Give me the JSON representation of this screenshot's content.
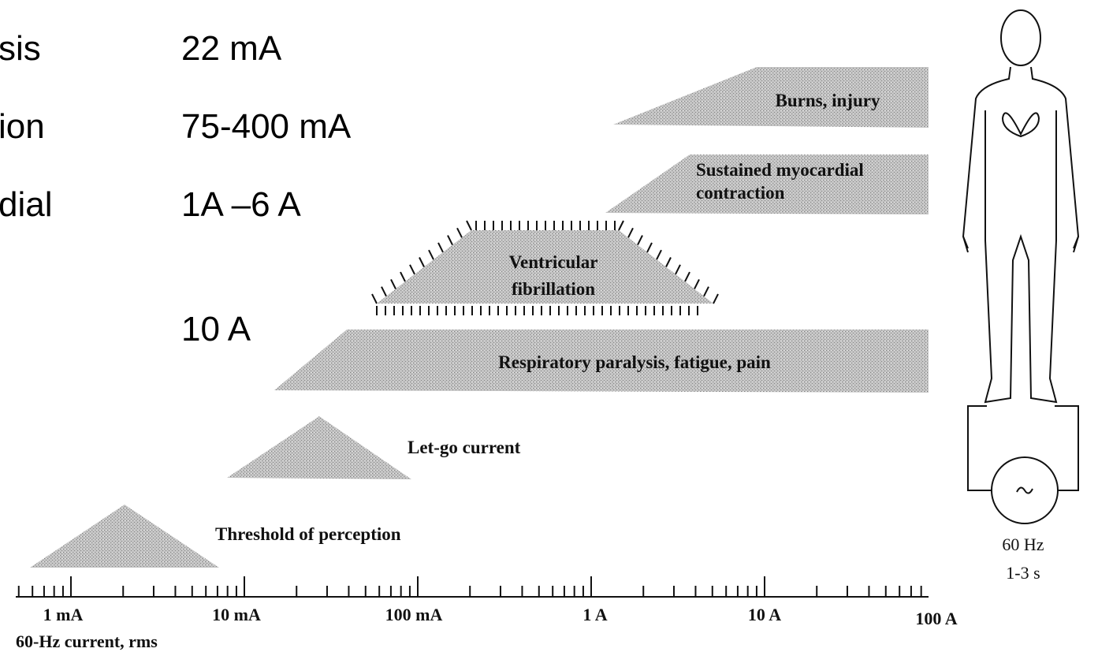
{
  "slide": {
    "rows": [
      {
        "term": "sis",
        "value": "22 mA"
      },
      {
        "term": "ion",
        "value": "75-400 mA"
      },
      {
        "term": "dial",
        "value": "1A –6 A"
      },
      {
        "value": "10 A"
      }
    ]
  },
  "diagram": {
    "regions": [
      "Burns, injury",
      "Sustained myocardial",
      "contraction",
      "Ventricular",
      "fibrillation",
      "Respiratory paralysis, fatigue, pain",
      "Let-go current",
      "Threshold of perception"
    ],
    "axis": {
      "labels": [
        "1 mA",
        "10 mA",
        "100 mA",
        "1 A",
        "10 A",
        "100 A"
      ],
      "title": "60-Hz current, rms"
    },
    "source": {
      "frequency": "60 Hz",
      "duration": "1-3 s"
    }
  }
}
